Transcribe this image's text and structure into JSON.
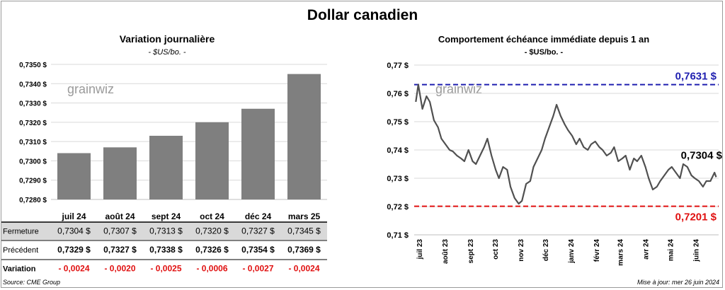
{
  "title": "Dollar canadien",
  "source": "Source: CME Group",
  "updated": "Mise à jour: mer 26 juin 2024",
  "colors": {
    "bar": "#7f7f7f",
    "line": "#505050",
    "high": "#1f1fb0",
    "low": "#e01010",
    "neg": "#e01010",
    "row_bg": "#d9d9d9"
  },
  "chart_data": [
    {
      "type": "bar",
      "title": "Variation  journalière",
      "subtitle": "- $US/bo. -",
      "categories": [
        "juil 24",
        "août 24",
        "sept 24",
        "oct 24",
        "déc 24",
        "mars 25"
      ],
      "values": [
        0.7304,
        0.7307,
        0.7313,
        0.732,
        0.7327,
        0.7345
      ],
      "ylim": [
        0.728,
        0.735
      ],
      "yticks": [
        "0,7280 $",
        "0,7290 $",
        "0,7300 $",
        "0,7310 $",
        "0,7320 $",
        "0,7330 $",
        "0,7340 $",
        "0,7350 $"
      ],
      "table": {
        "rows": [
          {
            "label": "Fermeture",
            "cells": [
              "0,7304  $",
              "0,7307  $",
              "0,7313  $",
              "0,7320  $",
              "0,7327  $",
              "0,7345  $"
            ]
          },
          {
            "label": "Précédent",
            "cells": [
              "0,7329  $",
              "0,7327  $",
              "0,7338  $",
              "0,7326  $",
              "0,7354  $",
              "0,7369  $"
            ]
          },
          {
            "label": "Variation",
            "cells": [
              "- 0,0024",
              "- 0,0020",
              "- 0,0025",
              "- 0,0006",
              "- 0,0027",
              "- 0,0024"
            ]
          }
        ]
      }
    },
    {
      "type": "line",
      "title": "Comportement échéance immédiate depuis 1 an",
      "subtitle": "- $US/bo. -",
      "ylim": [
        0.71,
        0.77
      ],
      "yticks": [
        "0,71 $",
        "0,72 $",
        "0,73 $",
        "0,74 $",
        "0,75 $",
        "0,76 $",
        "0,77 $"
      ],
      "xticks": [
        "juil 23",
        "août 23",
        "sept 23",
        "oct 23",
        "nov 23",
        "déc 23",
        "janv 24",
        "févr 24",
        "mars 24",
        "avr 24",
        "mai 24",
        "juin 24"
      ],
      "high": {
        "value": 0.7631,
        "label": "0,7631 $"
      },
      "low": {
        "value": 0.7201,
        "label": "0,7201 $"
      },
      "last": {
        "value": 0.7304,
        "label": "0,7304 $"
      },
      "x": [
        "2023-06-27",
        "2023-06-30",
        "2023-07-05",
        "2023-07-10",
        "2023-07-14",
        "2023-07-19",
        "2023-07-24",
        "2023-07-28",
        "2023-08-02",
        "2023-08-07",
        "2023-08-11",
        "2023-08-16",
        "2023-08-21",
        "2023-08-25",
        "2023-08-30",
        "2023-09-04",
        "2023-09-08",
        "2023-09-13",
        "2023-09-18",
        "2023-09-22",
        "2023-09-27",
        "2023-10-02",
        "2023-10-06",
        "2023-10-11",
        "2023-10-16",
        "2023-10-20",
        "2023-10-25",
        "2023-10-30",
        "2023-11-03",
        "2023-11-08",
        "2023-11-13",
        "2023-11-17",
        "2023-11-22",
        "2023-11-27",
        "2023-12-01",
        "2023-12-06",
        "2023-12-11",
        "2023-12-15",
        "2023-12-20",
        "2023-12-25",
        "2023-12-29",
        "2024-01-03",
        "2024-01-08",
        "2024-01-12",
        "2024-01-17",
        "2024-01-22",
        "2024-01-26",
        "2024-01-31",
        "2024-02-05",
        "2024-02-09",
        "2024-02-14",
        "2024-02-19",
        "2024-02-23",
        "2024-02-28",
        "2024-03-04",
        "2024-03-08",
        "2024-03-13",
        "2024-03-18",
        "2024-03-22",
        "2024-03-27",
        "2024-04-01",
        "2024-04-05",
        "2024-04-10",
        "2024-04-15",
        "2024-04-19",
        "2024-04-24",
        "2024-04-29",
        "2024-05-03",
        "2024-05-08",
        "2024-05-13",
        "2024-05-17",
        "2024-05-22",
        "2024-05-27",
        "2024-05-31",
        "2024-06-05",
        "2024-06-10",
        "2024-06-14",
        "2024-06-19",
        "2024-06-24",
        "2024-06-26"
      ],
      "values": [
        0.757,
        0.7631,
        0.7545,
        0.759,
        0.757,
        0.7505,
        0.748,
        0.744,
        0.742,
        0.74,
        0.7395,
        0.738,
        0.737,
        0.736,
        0.74,
        0.736,
        0.735,
        0.738,
        0.741,
        0.744,
        0.738,
        0.733,
        0.73,
        0.734,
        0.733,
        0.727,
        0.723,
        0.721,
        0.722,
        0.728,
        0.729,
        0.734,
        0.737,
        0.74,
        0.744,
        0.748,
        0.752,
        0.756,
        0.752,
        0.749,
        0.747,
        0.745,
        0.742,
        0.744,
        0.741,
        0.74,
        0.742,
        0.743,
        0.741,
        0.74,
        0.738,
        0.739,
        0.741,
        0.736,
        0.737,
        0.738,
        0.733,
        0.737,
        0.736,
        0.738,
        0.734,
        0.73,
        0.726,
        0.727,
        0.729,
        0.731,
        0.733,
        0.734,
        0.732,
        0.73,
        0.735,
        0.734,
        0.731,
        0.73,
        0.729,
        0.727,
        0.729,
        0.729,
        0.732,
        0.7304
      ]
    }
  ]
}
